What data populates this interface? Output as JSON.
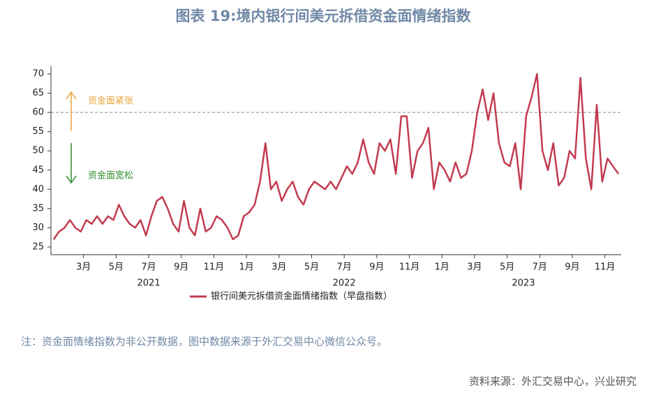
{
  "chart_data": {
    "type": "line",
    "title": "图表 19:境内银行间美元拆借资金面情绪指数",
    "x": [
      "2021-01",
      "2021-01",
      "2021-01",
      "2021-02",
      "2021-02",
      "2021-02",
      "2021-03",
      "2021-03",
      "2021-03",
      "2021-04",
      "2021-04",
      "2021-04",
      "2021-05",
      "2021-05",
      "2021-05",
      "2021-06",
      "2021-06",
      "2021-06",
      "2021-07",
      "2021-07",
      "2021-07",
      "2021-08",
      "2021-08",
      "2021-08",
      "2021-09",
      "2021-09",
      "2021-09",
      "2021-10",
      "2021-10",
      "2021-10",
      "2021-11",
      "2021-11",
      "2021-11",
      "2021-12",
      "2021-12",
      "2021-12",
      "2022-01",
      "2022-01",
      "2022-01",
      "2022-02",
      "2022-02",
      "2022-02",
      "2022-03",
      "2022-03",
      "2022-03",
      "2022-04",
      "2022-04",
      "2022-04",
      "2022-05",
      "2022-05",
      "2022-05",
      "2022-06",
      "2022-06",
      "2022-06",
      "2022-07",
      "2022-07",
      "2022-07",
      "2022-08",
      "2022-08",
      "2022-08",
      "2022-09",
      "2022-09",
      "2022-09",
      "2022-10",
      "2022-10",
      "2022-10",
      "2022-11",
      "2022-11",
      "2022-11",
      "2022-12",
      "2022-12",
      "2022-12",
      "2023-01",
      "2023-01",
      "2023-01",
      "2023-02",
      "2023-02",
      "2023-02",
      "2023-03",
      "2023-03",
      "2023-03",
      "2023-04",
      "2023-04",
      "2023-04",
      "2023-05",
      "2023-05",
      "2023-05",
      "2023-06",
      "2023-06",
      "2023-06",
      "2023-07",
      "2023-07",
      "2023-07",
      "2023-08",
      "2023-08",
      "2023-08",
      "2023-09",
      "2023-09",
      "2023-09",
      "2023-10",
      "2023-10",
      "2023-10",
      "2023-11",
      "2023-11",
      "2023-11"
    ],
    "series": [
      {
        "name": "银行间美元拆借资金面情绪指数（早盘指数）",
        "color": "#c23b50",
        "values": [
          27,
          29,
          30,
          32,
          30,
          29,
          32,
          31,
          33,
          31,
          33,
          32,
          36,
          33,
          31,
          30,
          32,
          28,
          33,
          37,
          38,
          35,
          31,
          29,
          37,
          30,
          28,
          35,
          29,
          30,
          33,
          32,
          30,
          27,
          28,
          33,
          34,
          36,
          42,
          52,
          40,
          42,
          37,
          40,
          42,
          38,
          36,
          40,
          42,
          41,
          40,
          42,
          40,
          43,
          46,
          44,
          47,
          53,
          47,
          44,
          52,
          50,
          53,
          44,
          59,
          59,
          43,
          50,
          52,
          56,
          40,
          47,
          45,
          42,
          47,
          43,
          44,
          50,
          60,
          66,
          58,
          65,
          52,
          47,
          46,
          52,
          40,
          59,
          64,
          70,
          50,
          45,
          52,
          41,
          43,
          50,
          48,
          69,
          48,
          40,
          62,
          42,
          48,
          46,
          44
        ]
      }
    ],
    "xlim": [
      "2021-01",
      "2023-12"
    ],
    "xticks": [
      {
        "value": "2021-03",
        "label": "3月"
      },
      {
        "value": "2021-05",
        "label": "5月"
      },
      {
        "value": "2021-07",
        "label": "7月"
      },
      {
        "value": "2021-09",
        "label": "9月"
      },
      {
        "value": "2021-11",
        "label": "11月"
      },
      {
        "value": "2022-01",
        "label": "1月"
      },
      {
        "value": "2022-03",
        "label": "3月"
      },
      {
        "value": "2022-05",
        "label": "5月"
      },
      {
        "value": "2022-07",
        "label": "7月"
      },
      {
        "value": "2022-09",
        "label": "9月"
      },
      {
        "value": "2022-11",
        "label": "11月"
      },
      {
        "value": "2023-01",
        "label": "1月"
      },
      {
        "value": "2023-03",
        "label": "3月"
      },
      {
        "value": "2023-05",
        "label": "5月"
      },
      {
        "value": "2023-07",
        "label": "7月"
      },
      {
        "value": "2023-09",
        "label": "9月"
      },
      {
        "value": "2023-11",
        "label": "11月"
      }
    ],
    "year_labels": [
      {
        "value": "2021-07",
        "label": "2021"
      },
      {
        "value": "2022-07",
        "label": "2022"
      },
      {
        "value": "2023-06",
        "label": "2023"
      }
    ],
    "ylim": [
      23,
      72
    ],
    "yticks": [
      25,
      30,
      35,
      40,
      45,
      50,
      55,
      60,
      65,
      70
    ],
    "reference_line": 60,
    "annotations": [
      {
        "text": "资金面紧张",
        "color": "#e8a33a",
        "direction": "up"
      },
      {
        "text": "资金面宽松",
        "color": "#2e8b2e",
        "direction": "down"
      }
    ],
    "note": "注：资金面情绪指数为非公开数据，图中数据来源于外汇交易中心微信公众号。",
    "source": "资料来源：外汇交易中心，兴业研究"
  }
}
